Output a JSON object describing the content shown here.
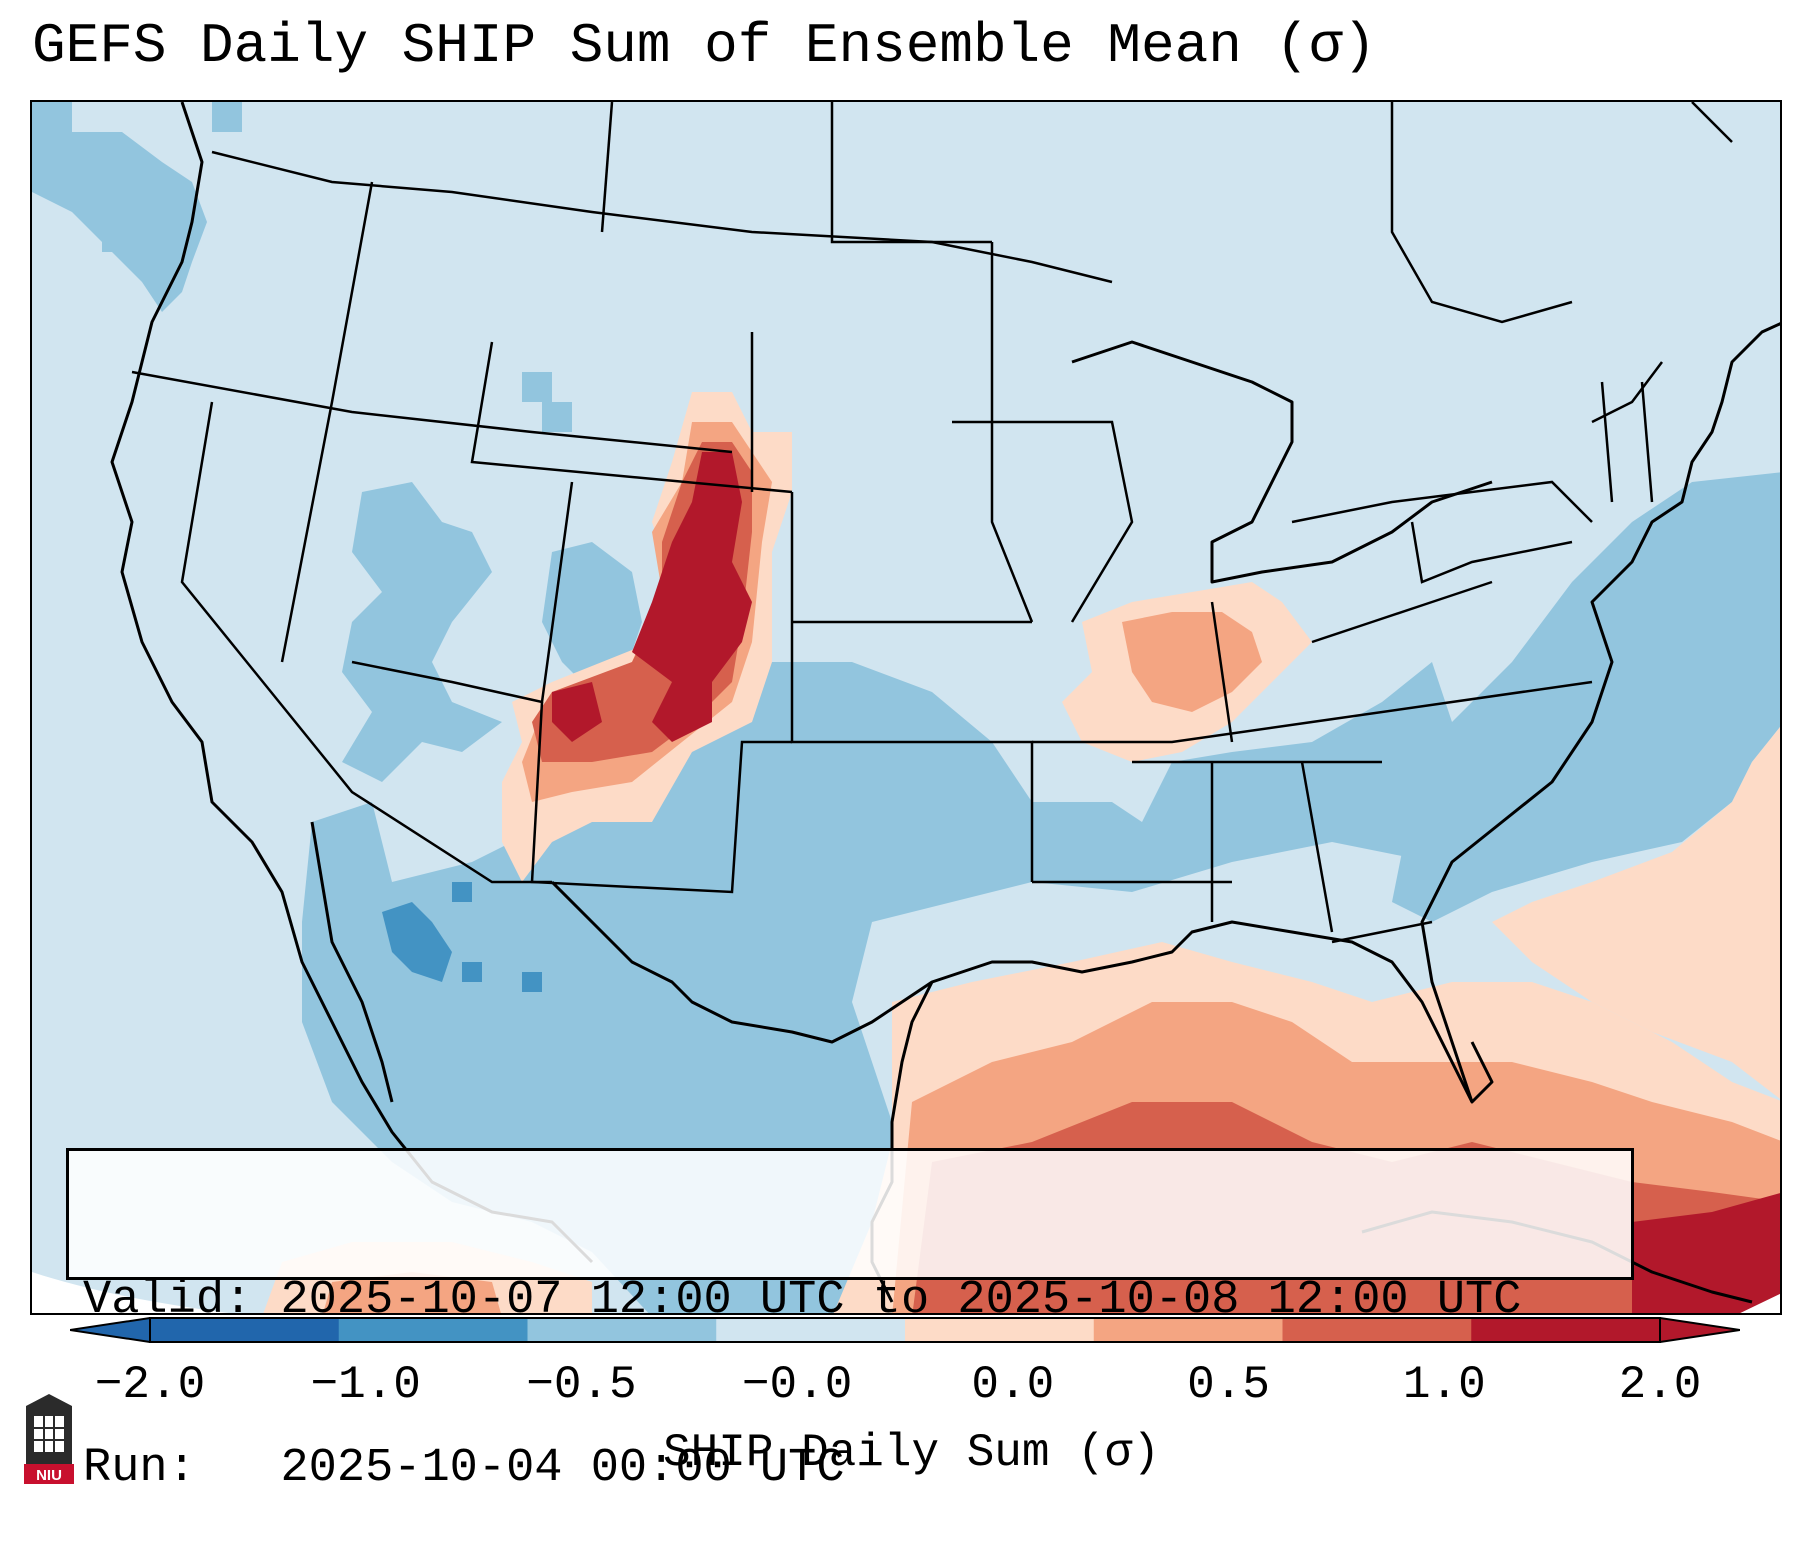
{
  "title": "GEFS Daily SHIP Sum of Ensemble Mean (σ)",
  "info": {
    "valid_label": "Valid:",
    "valid_value": "2025-10-07 12:00 UTC to 2025-10-08 12:00 UTC",
    "run_label": "Run:",
    "run_value": "2025-10-04 00:00 UTC"
  },
  "colorbar": {
    "label": "SHIP Daily Sum (σ)",
    "tick_labels": [
      "−2.0",
      "−1.0",
      "−0.5",
      "−0.0",
      "0.0",
      "0.5",
      "1.0",
      "2.0"
    ],
    "colors": [
      "#2166ac",
      "#4393c3",
      "#92c5de",
      "#d1e5f0",
      "#fddbc7",
      "#f4a582",
      "#d6604d",
      "#b2182b"
    ],
    "extend": "both"
  },
  "map": {
    "background_color": "#d1e5f0",
    "region": "Contiguous United States, northern Mexico, Gulf of Mexico, Caribbean",
    "features": [
      {
        "name": "Colorado / New Mexico / Wyoming high-value core",
        "category": "1.0 to 2.0+"
      },
      {
        "name": "Ohio Valley / Illinois / Indiana",
        "category": "0.0 to 1.0"
      },
      {
        "name": "Gulf of Mexico / Caribbean / Cuba",
        "category": "0.5 to 2.0+"
      },
      {
        "name": "Texas / Mexico / Southeast",
        "category": "−1.0 to −0.5"
      },
      {
        "name": "Western Atlantic offshore",
        "category": "−1.0 to −0.5"
      }
    ]
  },
  "logo": {
    "text": "NIU",
    "color": "#c8102e"
  }
}
